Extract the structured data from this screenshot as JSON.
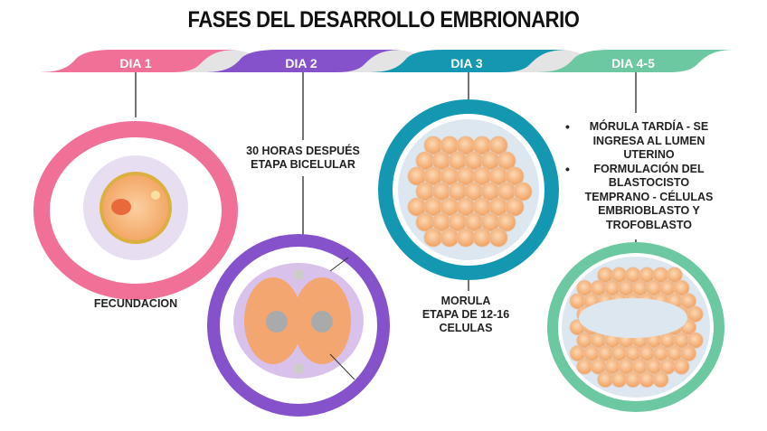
{
  "title": "FASES DEL DESARROLLO EMBRIONARIO",
  "colors": {
    "day1": "#f07098",
    "day2": "#8552cc",
    "day3": "#1498b2",
    "day45": "#6cc8a0",
    "connector": "#e4e4e4"
  },
  "days": [
    {
      "label": "DIA 1",
      "caption": "FECUNDACION"
    },
    {
      "label": "DIA 2",
      "caption_lines": [
        "30 HORAS DESPUÉS",
        "ETAPA BICELULAR"
      ]
    },
    {
      "label": "DIA 3",
      "caption_lines": [
        "MORULA",
        "ETAPA DE 12-16",
        "CELULAS"
      ]
    },
    {
      "label": "DIA 4-5",
      "bullets": [
        "MÓRULA TARDÍA  - SE INGRESA AL LUMEN UTERINO",
        "FORMULACIÓN DEL BLASTOCISTO TEMPRANO - CÉLULAS EMBRIOBLASTO Y TROFOBLASTO"
      ]
    }
  ]
}
